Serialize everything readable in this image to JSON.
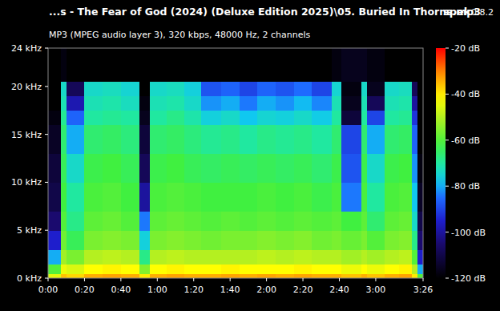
{
  "chart_data": {
    "type": "heatmap",
    "title": "...s - The Fear of God (2024) (Deluxe Edition 2025)\\05. Buried In Thorns.mp3",
    "subtitle": "MP3 (MPEG audio layer 3), 320 kbps, 48000 Hz, 2 channels",
    "annotations": [
      "spek",
      "0.8.2"
    ],
    "xlim": [
      0,
      206
    ],
    "xticks": [
      {
        "value": 0,
        "label": "0:00"
      },
      {
        "value": 20,
        "label": "0:20"
      },
      {
        "value": 40,
        "label": "0:40"
      },
      {
        "value": 60,
        "label": "1:00"
      },
      {
        "value": 80,
        "label": "1:20"
      },
      {
        "value": 100,
        "label": "1:40"
      },
      {
        "value": 120,
        "label": "2:00"
      },
      {
        "value": 140,
        "label": "2:20"
      },
      {
        "value": 160,
        "label": "2:40"
      },
      {
        "value": 180,
        "label": "3:00"
      },
      {
        "value": 206,
        "label": "3:26"
      }
    ],
    "ylim": [
      0,
      24
    ],
    "yticks": [
      {
        "value": 0,
        "label": "0 kHz"
      },
      {
        "value": 5,
        "label": "5 kHz"
      },
      {
        "value": 10,
        "label": "10 kHz"
      },
      {
        "value": 15,
        "label": "15 kHz"
      },
      {
        "value": 20,
        "label": "20 kHz"
      },
      {
        "value": 24,
        "label": "24 kHz"
      }
    ],
    "x_bins": [
      0,
      7,
      10,
      20,
      30,
      40,
      50,
      56,
      65,
      75,
      84,
      95,
      105,
      115,
      125,
      135,
      145,
      156,
      161,
      172,
      175,
      185,
      193,
      200,
      203,
      206
    ],
    "y_bins": [
      0,
      0.5,
      1.5,
      3,
      5,
      7,
      10,
      13,
      16,
      17.5,
      19,
      20.5,
      24
    ],
    "cells": [
      [
        -45,
        -36,
        -38,
        -34,
        -33,
        -34,
        -40,
        -34,
        -33,
        -34,
        -34,
        -33,
        -34,
        -33,
        -34,
        -33,
        -34,
        -34,
        -36,
        -34,
        -36,
        -34,
        -33,
        -40,
        -60
      ],
      [
        -60,
        -44,
        -46,
        -42,
        -41,
        -42,
        -55,
        -42,
        -41,
        -42,
        -42,
        -41,
        -42,
        -42,
        -42,
        -41,
        -42,
        -42,
        -44,
        -42,
        -44,
        -42,
        -41,
        -50,
        -80
      ],
      [
        -80,
        -52,
        -56,
        -50,
        -49,
        -50,
        -68,
        -50,
        -49,
        -50,
        -50,
        -50,
        -50,
        -49,
        -50,
        -49,
        -50,
        -50,
        -52,
        -50,
        -52,
        -50,
        -49,
        -60,
        -95
      ],
      [
        -95,
        -57,
        -64,
        -56,
        -55,
        -56,
        -76,
        -56,
        -55,
        -56,
        -57,
        -56,
        -56,
        -55,
        -56,
        -55,
        -57,
        -56,
        -58,
        -56,
        -60,
        -56,
        -55,
        -68,
        -105
      ],
      [
        -105,
        -60,
        -68,
        -59,
        -58,
        -60,
        -84,
        -59,
        -58,
        -59,
        -60,
        -59,
        -60,
        -59,
        -60,
        -59,
        -60,
        -59,
        -62,
        -59,
        -66,
        -59,
        -58,
        -74,
        -110
      ],
      [
        -110,
        -62,
        -70,
        -61,
        -60,
        -62,
        -100,
        -61,
        -60,
        -61,
        -62,
        -62,
        -62,
        -61,
        -62,
        -61,
        -63,
        -61,
        -84,
        -61,
        -70,
        -61,
        -60,
        -78,
        -115
      ],
      [
        -112,
        -64,
        -74,
        -63,
        -62,
        -64,
        -108,
        -63,
        -62,
        -64,
        -65,
        -64,
        -65,
        -64,
        -65,
        -64,
        -66,
        -63,
        -88,
        -63,
        -74,
        -63,
        -62,
        -82,
        -118
      ],
      [
        -115,
        -66,
        -80,
        -66,
        -65,
        -67,
        -112,
        -66,
        -65,
        -67,
        -69,
        -68,
        -70,
        -68,
        -69,
        -68,
        -70,
        -66,
        -90,
        -66,
        -80,
        -66,
        -65,
        -86,
        -120
      ],
      [
        -118,
        -69,
        -86,
        -70,
        -69,
        -70,
        -116,
        -70,
        -68,
        -71,
        -76,
        -74,
        -78,
        -75,
        -76,
        -74,
        -77,
        -70,
        -112,
        -70,
        -90,
        -70,
        -69,
        -92,
        -120
      ],
      [
        -120,
        -72,
        -98,
        -72,
        -71,
        -73,
        -118,
        -72,
        -71,
        -74,
        -82,
        -80,
        -84,
        -80,
        -82,
        -79,
        -83,
        -72,
        -116,
        -72,
        -108,
        -72,
        -71,
        -100,
        -120
      ],
      [
        -120,
        -74,
        -108,
        -74,
        -73,
        -75,
        -120,
        -74,
        -73,
        -76,
        -88,
        -86,
        -90,
        -86,
        -88,
        -85,
        -90,
        -75,
        -118,
        -74,
        -116,
        -74,
        -73,
        -108,
        -120
      ],
      [
        -120,
        -118,
        -120,
        -120,
        -120,
        -120,
        -120,
        -120,
        -120,
        -120,
        -120,
        -120,
        -120,
        -120,
        -120,
        -120,
        -120,
        -118,
        -116,
        -116,
        -118,
        -120,
        -120,
        -120,
        -120
      ]
    ],
    "colorbar_range": [
      -120,
      -20
    ],
    "colorbar_ticks": [
      {
        "value": -20,
        "label": "-20 dB"
      },
      {
        "value": -40,
        "label": "-40 dB"
      },
      {
        "value": -60,
        "label": "-60 dB"
      },
      {
        "value": -80,
        "label": "-80 dB"
      },
      {
        "value": -100,
        "label": "-100 dB"
      },
      {
        "value": -120,
        "label": "-120 dB"
      }
    ]
  }
}
